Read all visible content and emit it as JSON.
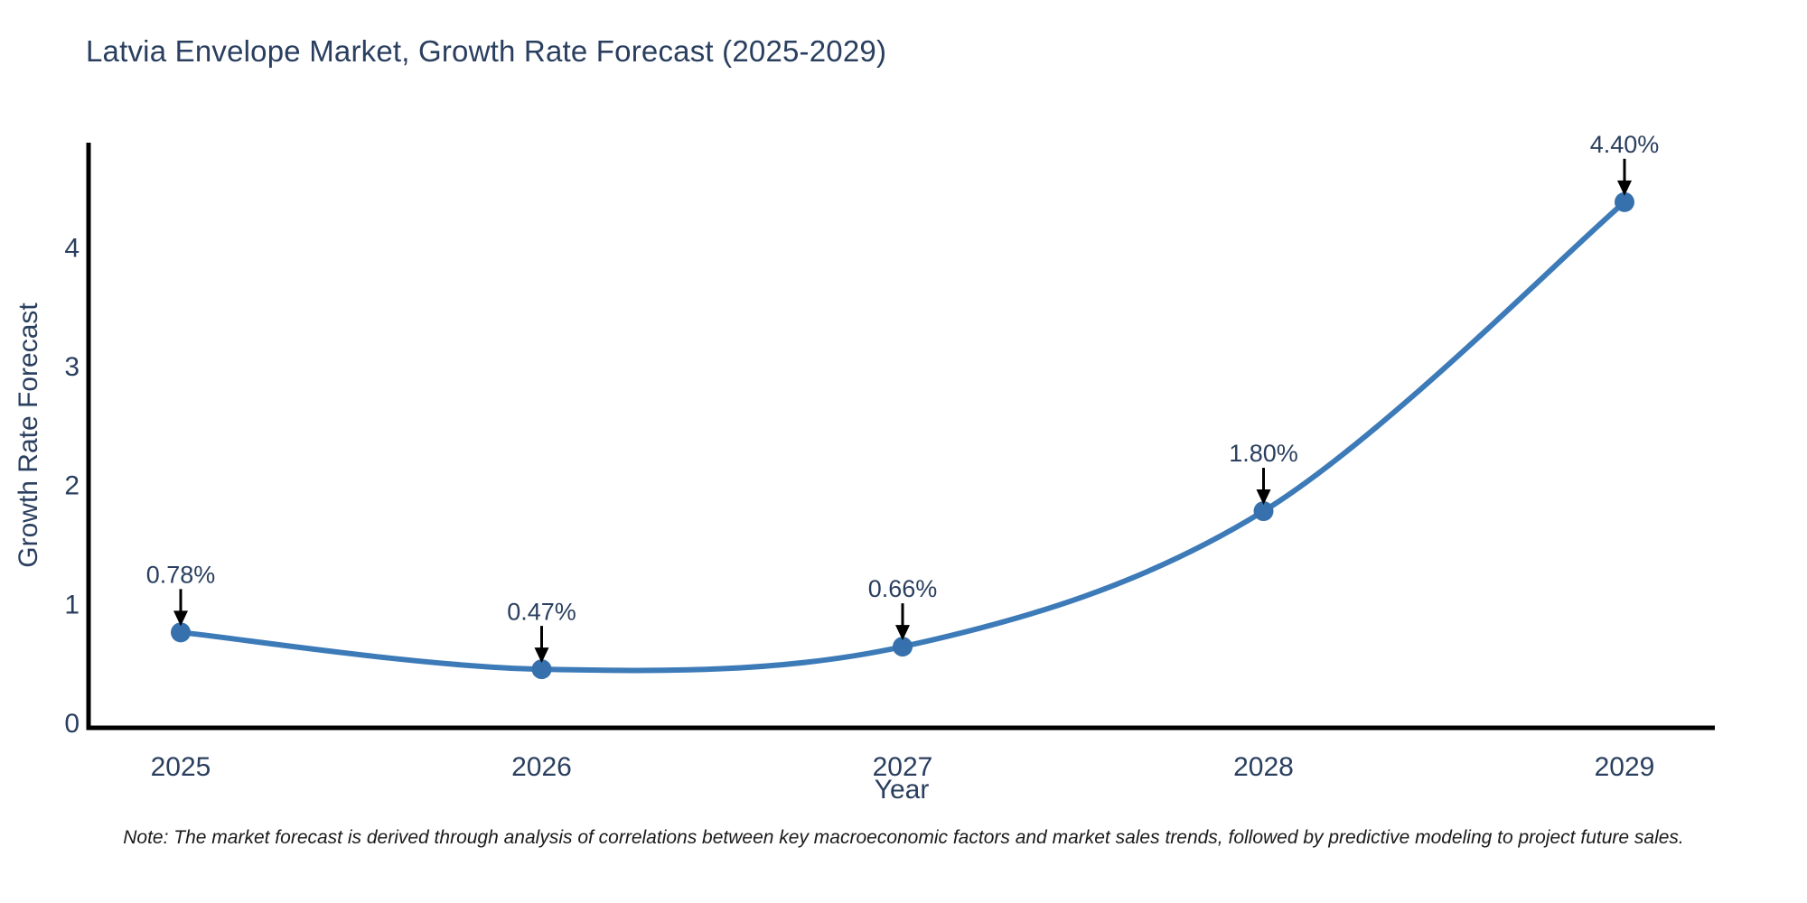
{
  "page": {
    "background": "#ffffff"
  },
  "figure": {
    "title": "Latvia Envelope Market, Growth Rate Forecast (2025-2029)",
    "note": "Note: The market forecast is derived through analysis of correlations between key macroeconomic factors and market sales trends, followed by predictive modeling to project future sales."
  },
  "chart_data": {
    "type": "line",
    "line_shape": "spline",
    "title": "Latvia Envelope Market, Growth Rate Forecast (2025-2029)",
    "categories": [
      "2025",
      "2026",
      "2027",
      "2028",
      "2029"
    ],
    "series": [
      {
        "name": "Growth Rate Forecast",
        "values": [
          0.78,
          0.47,
          0.66,
          1.8,
          4.4
        ]
      }
    ],
    "point_labels": [
      "0.78%",
      "0.47%",
      "0.66%",
      "1.80%",
      "4.40%"
    ],
    "xlabel": "Year",
    "ylabel": "Growth Rate Forecast",
    "yticks": [
      0,
      1,
      2,
      3,
      4
    ],
    "ylim": [
      0,
      4.9
    ],
    "grid": false,
    "legend_position": "none",
    "marker": "circle",
    "annotation_style": "label-with-down-arrow",
    "colors": {
      "line": "#3c7ab8",
      "marker": "#3671ad",
      "axis": "#000000",
      "text": "#2a3f5f",
      "annotation_text": "#2a3f5f",
      "annotation_arrow": "#000000",
      "note_text": "#1a1a1a"
    }
  }
}
